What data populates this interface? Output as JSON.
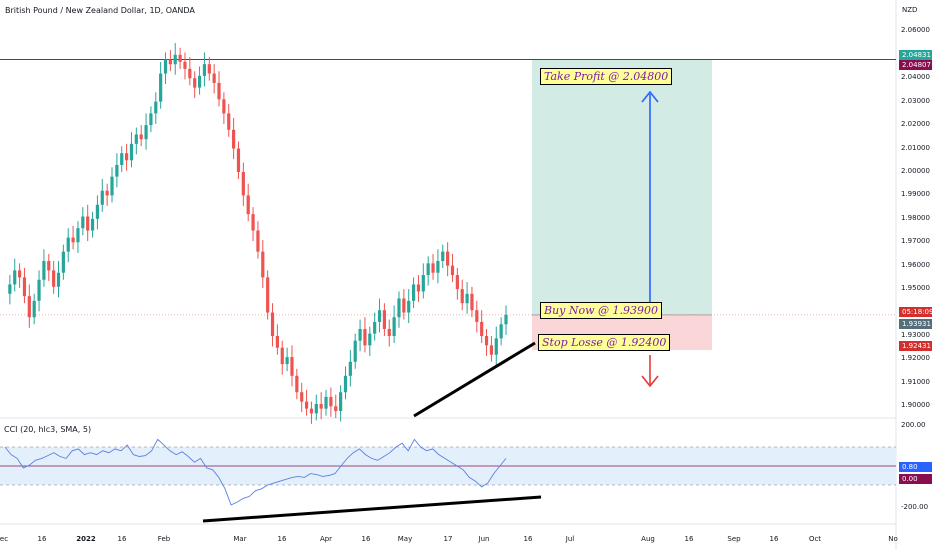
{
  "header": {
    "title": "British Pound / New Zealand Dollar, 1D, OANDA",
    "currency": "NZD"
  },
  "indicator": {
    "title": "CCI (20, hlc3, SMA, 5)",
    "levels": [
      "200.00",
      "-200.00"
    ],
    "value_tags": [
      "0.80",
      "0.00"
    ]
  },
  "annotations": {
    "take_profit": "Take Profit @ 2.04800",
    "buy_now": "Buy Now @ 1.93900",
    "stop_loss": "Stop Losse @ 1.92400"
  },
  "price_axis": {
    "labels": [
      "2.06000",
      "2.04000",
      "2.03000",
      "2.02000",
      "2.01000",
      "2.00000",
      "1.99000",
      "1.98000",
      "1.97000",
      "1.96000",
      "1.95000",
      "1.93000",
      "1.92000",
      "1.91000",
      "1.90000"
    ]
  },
  "price_tags": {
    "tag1": "2.04831",
    "tag2": "2.04807",
    "tag3": "05:18:09",
    "tag4": "1.93931",
    "tag5": "1.92431"
  },
  "time_axis": {
    "labels": [
      "ec",
      "16",
      "2022",
      "16",
      "Feb",
      "Mar",
      "16",
      "Apr",
      "16",
      "May",
      "17",
      "Jun",
      "16",
      "Jul",
      "Aug",
      "16",
      "Sep",
      "16",
      "Oct",
      "No"
    ]
  },
  "colors": {
    "up": "#26a69a",
    "down": "#ef5350",
    "profit_zone": "#d2ebe4",
    "loss_zone": "#fbd6d8",
    "resistance": "#b71c1c",
    "cci_line": "#5b7ee5",
    "cci_band": "#e3f0fc",
    "up_arrow": "#2962ff",
    "down_arrow": "#e53935",
    "tag_green": "#26a69a",
    "tag_dark": "#880e4f",
    "tag_red": "#d32f2f",
    "tag_grey": "#546e7a"
  },
  "chart_data": {
    "type": "candlestick",
    "title": "British Pound / New Zealand Dollar, 1D, OANDA",
    "y_range": [
      1.895,
      2.064
    ],
    "levels": {
      "resistance": 2.048,
      "take_profit": 2.048,
      "entry": 1.939,
      "stop_loss": 1.924
    },
    "ohlc_path": [
      1.948,
      1.952,
      1.958,
      1.955,
      1.947,
      1.938,
      1.945,
      1.954,
      1.962,
      1.958,
      1.951,
      1.957,
      1.966,
      1.972,
      1.97,
      1.976,
      1.981,
      1.975,
      1.98,
      1.986,
      1.992,
      1.99,
      1.998,
      2.003,
      2.008,
      2.005,
      2.012,
      2.016,
      2.014,
      2.02,
      2.025,
      2.03,
      2.042,
      2.048,
      2.046,
      2.05,
      2.047,
      2.044,
      2.04,
      2.036,
      2.041,
      2.046,
      2.042,
      2.038,
      2.031,
      2.025,
      2.018,
      2.01,
      2.0,
      1.99,
      1.982,
      1.975,
      1.966,
      1.955,
      1.94,
      1.93,
      1.925,
      1.918,
      1.921,
      1.913,
      1.906,
      1.902,
      1.899,
      1.897,
      1.901,
      1.899,
      1.904,
      1.9,
      1.898,
      1.906,
      1.913,
      1.919,
      1.928,
      1.933,
      1.926,
      1.931,
      1.936,
      1.941,
      1.933,
      1.93,
      1.938,
      1.946,
      1.94,
      1.945,
      1.952,
      1.949,
      1.956,
      1.961,
      1.957,
      1.962,
      1.966,
      1.96,
      1.956,
      1.95,
      1.944,
      1.948,
      1.941,
      1.936,
      1.93,
      1.926,
      1.922,
      1.929,
      1.935,
      1.939
    ],
    "cci_path": [
      100,
      60,
      40,
      -10,
      5,
      30,
      40,
      55,
      70,
      50,
      40,
      80,
      90,
      60,
      70,
      60,
      80,
      70,
      90,
      80,
      110,
      60,
      50,
      55,
      80,
      140,
      110,
      80,
      60,
      75,
      50,
      20,
      40,
      -10,
      -20,
      -60,
      -120,
      -205,
      -190,
      -170,
      -160,
      -130,
      -120,
      -100,
      -90,
      -80,
      -70,
      -60,
      -55,
      -60,
      -40,
      -45,
      -55,
      -50,
      -40,
      0,
      40,
      70,
      90,
      60,
      40,
      30,
      50,
      70,
      100,
      120,
      80,
      140,
      100,
      80,
      90,
      60,
      40,
      20,
      0,
      -20,
      -60,
      -80,
      -110,
      -90,
      -40,
      0,
      40
    ]
  }
}
